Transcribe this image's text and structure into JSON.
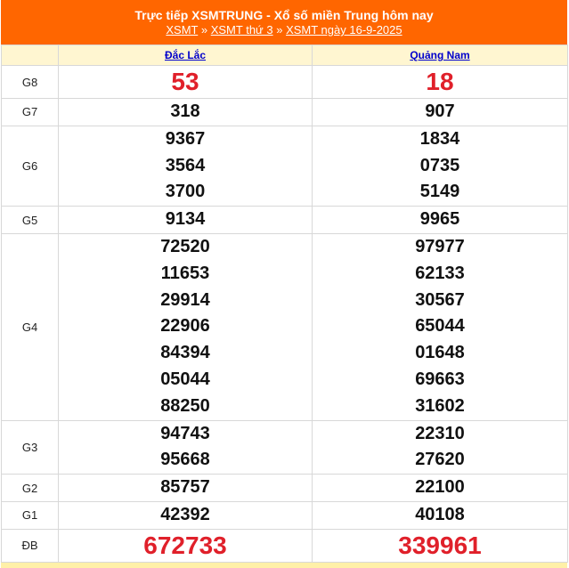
{
  "header": {
    "title": "Trực tiếp XSMTRUNG - Xổ số miền Trung hôm nay",
    "breadcrumb": [
      "XSMT",
      "XSMT thứ 3",
      "XSMT ngày 16-9-2025"
    ],
    "separator": " » "
  },
  "provinces": [
    "Đắc Lắc",
    "Quảng Nam"
  ],
  "prizes": [
    {
      "label": "G8",
      "highlight": true,
      "values": [
        [
          "53"
        ],
        [
          "18"
        ]
      ]
    },
    {
      "label": "G7",
      "values": [
        [
          "318"
        ],
        [
          "907"
        ]
      ]
    },
    {
      "label": "G6",
      "values": [
        [
          "9367",
          "3564",
          "3700"
        ],
        [
          "1834",
          "0735",
          "5149"
        ]
      ]
    },
    {
      "label": "G5",
      "values": [
        [
          "9134"
        ],
        [
          "9965"
        ]
      ]
    },
    {
      "label": "G4",
      "values": [
        [
          "72520",
          "11653",
          "29914",
          "22906",
          "84394",
          "05044",
          "88250"
        ],
        [
          "97977",
          "62133",
          "30567",
          "65044",
          "01648",
          "69663",
          "31602"
        ]
      ]
    },
    {
      "label": "G3",
      "values": [
        [
          "94743",
          "95668"
        ],
        [
          "22310",
          "27620"
        ]
      ]
    },
    {
      "label": "G2",
      "values": [
        [
          "85757"
        ],
        [
          "22100"
        ]
      ]
    },
    {
      "label": "G1",
      "values": [
        [
          "42392"
        ],
        [
          "40108"
        ]
      ]
    },
    {
      "label": "ĐB",
      "highlight": true,
      "values": [
        [
          "672733"
        ],
        [
          "339961"
        ]
      ]
    }
  ],
  "colors": {
    "header_bg": "#ff6600",
    "highlight_number": "#e0202a",
    "province_link": "#0000cc",
    "head_row_bg": "#fff6d1"
  }
}
